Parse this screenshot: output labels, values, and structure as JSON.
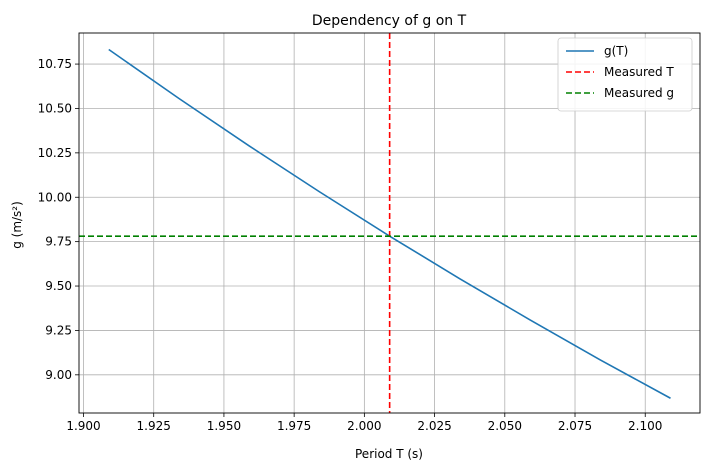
{
  "chart_data": {
    "type": "line",
    "title": "Dependency of g on T",
    "xlabel": "Period T (s)",
    "ylabel": "g (m/s²)",
    "xlim": [
      1.8984,
      2.1195
    ],
    "ylim": [
      8.785,
      10.925
    ],
    "xticks": [
      1.9,
      1.925,
      1.95,
      1.975,
      2.0,
      2.025,
      2.05,
      2.075,
      2.1
    ],
    "xtick_labels": [
      "1.900",
      "1.925",
      "1.950",
      "1.975",
      "2.000",
      "2.025",
      "2.050",
      "2.075",
      "2.100"
    ],
    "yticks": [
      9.0,
      9.25,
      9.5,
      9.75,
      10.0,
      10.25,
      10.5,
      10.75
    ],
    "ytick_labels": [
      "9.00",
      "9.25",
      "9.50",
      "9.75",
      "10.00",
      "10.25",
      "10.50",
      "10.75"
    ],
    "grid": true,
    "legend_position": "top-right",
    "series": [
      {
        "name": "g(T)",
        "color": "#1f77b4",
        "style": "solid",
        "x": [
          1.909,
          1.934,
          1.959,
          1.984,
          2.009,
          2.034,
          2.059,
          2.084,
          2.109
        ],
        "y": [
          10.832,
          10.556,
          10.289,
          10.031,
          9.781,
          9.541,
          9.309,
          9.084,
          8.868
        ]
      }
    ],
    "reference_lines": [
      {
        "name": "Measured T",
        "orientation": "vertical",
        "value": 2.009,
        "color": "#ff0000",
        "style": "dashed"
      },
      {
        "name": "Measured g",
        "orientation": "horizontal",
        "value": 9.781,
        "color": "#008000",
        "style": "dashed"
      }
    ]
  }
}
